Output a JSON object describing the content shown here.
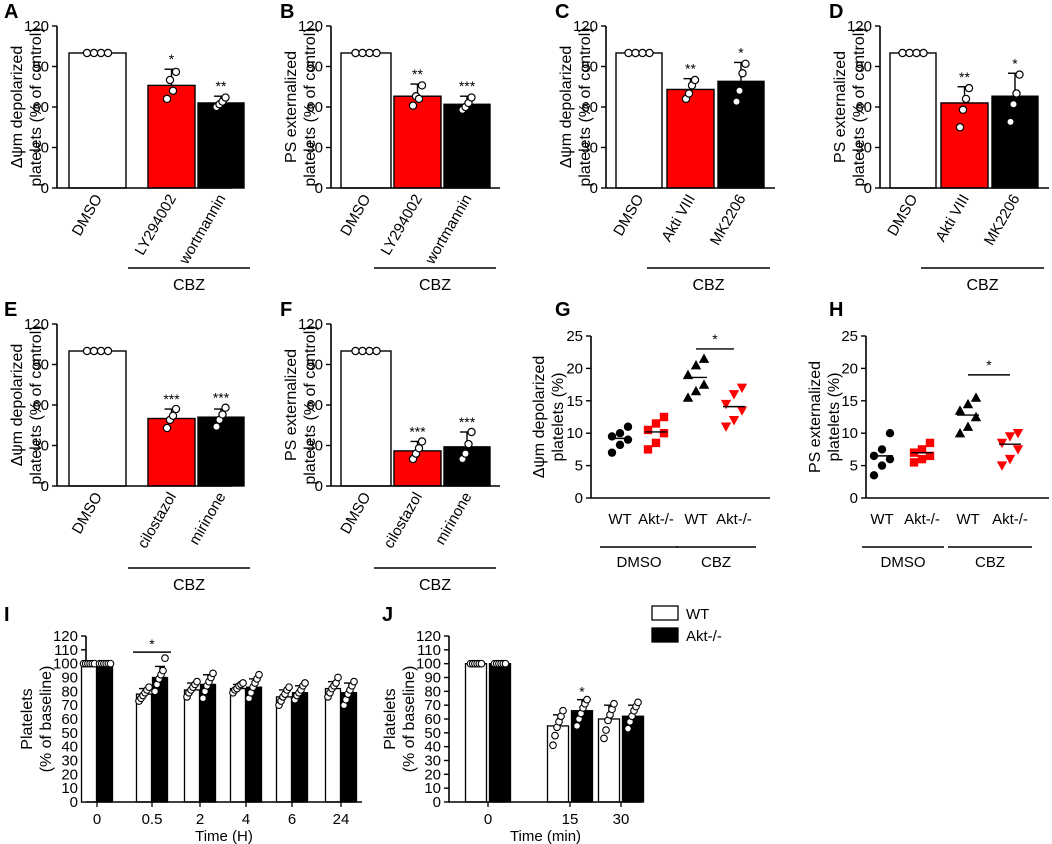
{
  "colors": {
    "white": "#ffffff",
    "red": "#ff0000",
    "black": "#000000",
    "axis": "#000000"
  },
  "legend": {
    "items": [
      {
        "label": "WT",
        "color": "#ffffff"
      },
      {
        "label": "Akt-/-",
        "color": "#000000"
      }
    ]
  },
  "chart_data": [
    {
      "panel": "A",
      "type": "bar",
      "ylabel": [
        "Δψm depolarized",
        "platelets (% of control)"
      ],
      "ylim": [
        0,
        120
      ],
      "yticks": [
        0,
        30,
        60,
        90,
        120
      ],
      "categories": [
        "DMSO",
        "LY294002",
        "wortmannin"
      ],
      "bar_colors": [
        "white",
        "red",
        "black"
      ],
      "values": [
        100,
        76,
        63
      ],
      "errors": [
        0,
        12,
        5
      ],
      "points": [
        [
          100,
          100,
          100,
          100
        ],
        [
          66,
          80,
          72,
          86
        ],
        [
          60,
          62,
          64,
          67
        ]
      ],
      "significance": [
        "",
        "*",
        "**"
      ],
      "group_label": "CBZ",
      "group_start": 1
    },
    {
      "panel": "B",
      "type": "bar",
      "ylabel": [
        "PS externalized",
        "platelets (% of control)"
      ],
      "ylim": [
        0,
        120
      ],
      "yticks": [
        0,
        30,
        60,
        90,
        120
      ],
      "categories": [
        "DMSO",
        "LY294002",
        "wortmannin"
      ],
      "bar_colors": [
        "white",
        "red",
        "black"
      ],
      "values": [
        100,
        68,
        62
      ],
      "errors": [
        0,
        9,
        6
      ],
      "points": [
        [
          100,
          100,
          100,
          100
        ],
        [
          61,
          68,
          66,
          76
        ],
        [
          58,
          60,
          63,
          67
        ]
      ],
      "significance": [
        "",
        "**",
        "***"
      ],
      "group_label": "CBZ",
      "group_start": 1
    },
    {
      "panel": "C",
      "type": "bar",
      "ylabel": [
        "Δψm depolarized",
        "platelets (% of control)"
      ],
      "ylim": [
        0,
        120
      ],
      "yticks": [
        0,
        30,
        60,
        90,
        120
      ],
      "categories": [
        "DMSO",
        "Akti VIII",
        "MK2206"
      ],
      "bar_colors": [
        "white",
        "red",
        "black"
      ],
      "values": [
        100,
        73,
        79
      ],
      "errors": [
        0,
        8,
        14
      ],
      "points": [
        [
          100,
          100,
          100,
          100
        ],
        [
          66,
          70,
          76,
          80
        ],
        [
          64,
          72,
          85,
          92
        ]
      ],
      "significance": [
        "",
        "**",
        "*"
      ],
      "group_label": "CBZ",
      "group_start": 1
    },
    {
      "panel": "D",
      "type": "bar",
      "ylabel": [
        "PS externalized",
        "platelets (% of control)"
      ],
      "ylim": [
        0,
        120
      ],
      "yticks": [
        0,
        30,
        60,
        90,
        120
      ],
      "categories": [
        "DMSO",
        "Akti VIII",
        "MK2206"
      ],
      "bar_colors": [
        "white",
        "red",
        "black"
      ],
      "values": [
        100,
        63,
        68
      ],
      "errors": [
        0,
        12,
        17
      ],
      "points": [
        [
          100,
          100,
          100,
          100
        ],
        [
          45,
          58,
          66,
          74
        ],
        [
          49,
          62,
          70,
          84
        ]
      ],
      "significance": [
        "",
        "**",
        "*"
      ],
      "group_label": "CBZ",
      "group_start": 1
    },
    {
      "panel": "E",
      "type": "bar",
      "ylabel": [
        "Δψm depolarized",
        "platelets (% of control)"
      ],
      "ylim": [
        0,
        120
      ],
      "yticks": [
        0,
        30,
        60,
        90,
        120
      ],
      "categories": [
        "DMSO",
        "cilostazol",
        "mirinone"
      ],
      "bar_colors": [
        "white",
        "red",
        "black"
      ],
      "values": [
        100,
        50,
        51
      ],
      "errors": [
        0,
        7,
        6
      ],
      "points": [
        [
          100,
          100,
          100,
          100
        ],
        [
          43,
          49,
          52,
          57
        ],
        [
          44,
          49,
          53,
          58
        ]
      ],
      "significance": [
        "",
        "***",
        "***"
      ],
      "group_label": "CBZ",
      "group_start": 1
    },
    {
      "panel": "F",
      "type": "bar",
      "ylabel": [
        "PS externalized",
        "platelets (% of control)"
      ],
      "ylim": [
        0,
        120
      ],
      "yticks": [
        0,
        30,
        60,
        90,
        120
      ],
      "categories": [
        "DMSO",
        "cilostazol",
        "mirinone"
      ],
      "bar_colors": [
        "white",
        "red",
        "black"
      ],
      "values": [
        100,
        26,
        29
      ],
      "errors": [
        0,
        7,
        11
      ],
      "points": [
        [
          100,
          100,
          100,
          100
        ],
        [
          20,
          24,
          28,
          33
        ],
        [
          20,
          24,
          31,
          40
        ]
      ],
      "significance": [
        "",
        "***",
        "***"
      ],
      "group_label": "CBZ",
      "group_start": 1
    },
    {
      "panel": "G",
      "type": "scatter",
      "ylabel": [
        "Δψm depolarized",
        "platelets (%)"
      ],
      "ylim": [
        0,
        25
      ],
      "yticks": [
        0,
        5,
        10,
        15,
        20,
        25
      ],
      "categories": [
        "WT",
        "Akt-/-",
        "WT",
        "Akt-/-"
      ],
      "groups": [
        {
          "label": "DMSO",
          "from": 0,
          "to": 1
        },
        {
          "label": "CBZ",
          "from": 2,
          "to": 3
        }
      ],
      "markers": [
        "circle",
        "square",
        "triangle-up",
        "triangle-down"
      ],
      "marker_colors": [
        "black",
        "red",
        "black",
        "red"
      ],
      "means": [
        9.2,
        10.2,
        18.6,
        14.1
      ],
      "points": [
        [
          7.0,
          8.2,
          9.0,
          9.5,
          10.0,
          11.0
        ],
        [
          7.5,
          8.5,
          10.0,
          10.5,
          11.5,
          12.5
        ],
        [
          15.5,
          16.5,
          17.5,
          19.0,
          20.5,
          21.5
        ],
        [
          11.0,
          12.0,
          13.5,
          14.5,
          16.0,
          17.0
        ]
      ],
      "significance": [
        {
          "from": 2,
          "to": 3,
          "label": "*",
          "y": 23
        }
      ]
    },
    {
      "panel": "H",
      "type": "scatter",
      "ylabel": [
        "PS externalized",
        "platelets (%)"
      ],
      "ylim": [
        0,
        25
      ],
      "yticks": [
        0,
        5,
        10,
        15,
        20,
        25
      ],
      "categories": [
        "WT",
        "Akt-/-",
        "WT",
        "Akt-/-"
      ],
      "groups": [
        {
          "label": "DMSO",
          "from": 0,
          "to": 1
        },
        {
          "label": "CBZ",
          "from": 2,
          "to": 3
        }
      ],
      "markers": [
        "circle",
        "square",
        "triangle-up",
        "triangle-down"
      ],
      "marker_colors": [
        "black",
        "red",
        "black",
        "red"
      ],
      "means": [
        6.5,
        7.0,
        12.8,
        8.3
      ],
      "points": [
        [
          3.5,
          5.0,
          6.0,
          6.5,
          7.5,
          10.0
        ],
        [
          5.5,
          6.0,
          6.5,
          7.0,
          7.5,
          8.5
        ],
        [
          10.0,
          11.0,
          12.5,
          13.5,
          14.5,
          15.5
        ],
        [
          5.0,
          6.0,
          7.5,
          8.5,
          9.5,
          10.0
        ]
      ],
      "significance": [
        {
          "from": 2,
          "to": 3,
          "label": "*",
          "y": 19
        }
      ]
    },
    {
      "panel": "I",
      "type": "bar",
      "ylabel": [
        "Platelets",
        "(% of baseline)"
      ],
      "xlabel": "Time (H)",
      "ylim": [
        0,
        120
      ],
      "yticks": [
        0,
        10,
        20,
        30,
        40,
        50,
        60,
        70,
        80,
        90,
        100,
        110,
        120
      ],
      "categories": [
        "0",
        "0.5",
        "2",
        "4",
        "6",
        "24"
      ],
      "series": [
        {
          "name": "WT",
          "color": "white",
          "values": [
            100,
            78,
            81,
            82,
            76,
            82
          ],
          "errors": [
            0,
            4,
            5,
            3,
            5,
            5
          ],
          "points": [
            [
              100,
              100,
              100,
              100,
              100,
              100
            ],
            [
              73,
              75,
              77,
              79,
              81,
              83
            ],
            [
              76,
              79,
              81,
              83,
              85,
              87
            ],
            [
              79,
              81,
              82,
              84,
              85,
              86
            ],
            [
              70,
              73,
              76,
              78,
              81,
              83
            ],
            [
              76,
              79,
              82,
              84,
              86,
              90
            ]
          ]
        },
        {
          "name": "Akt-/-",
          "color": "black",
          "values": [
            100,
            90,
            85,
            83,
            79,
            79
          ],
          "errors": [
            0,
            8,
            7,
            6,
            5,
            7
          ],
          "points": [
            [
              100,
              100,
              100,
              100,
              100,
              100
            ],
            [
              80,
              85,
              89,
              92,
              95,
              104
            ],
            [
              75,
              80,
              84,
              87,
              90,
              93
            ],
            [
              75,
              79,
              83,
              86,
              89,
              92
            ],
            [
              74,
              77,
              79,
              81,
              84,
              86
            ],
            [
              70,
              74,
              78,
              81,
              84,
              87
            ]
          ]
        }
      ],
      "significance": [
        {
          "category": 1,
          "label": "*"
        }
      ]
    },
    {
      "panel": "J",
      "type": "bar",
      "ylabel": [
        "Platelets",
        "(% of baseline)"
      ],
      "xlabel": "Time (min)",
      "ylim": [
        0,
        120
      ],
      "yticks": [
        0,
        10,
        20,
        30,
        40,
        50,
        60,
        70,
        80,
        90,
        100,
        110,
        120
      ],
      "categories": [
        "0",
        "15",
        "30"
      ],
      "series": [
        {
          "name": "WT",
          "color": "white",
          "values": [
            100,
            55,
            60
          ],
          "errors": [
            0,
            8,
            10
          ],
          "points": [
            [
              100,
              100,
              100,
              100,
              100,
              100
            ],
            [
              41,
              48,
              54,
              58,
              62,
              66
            ],
            [
              46,
              52,
              59,
              63,
              67,
              71
            ]
          ]
        },
        {
          "name": "Akt-/-",
          "color": "black",
          "values": [
            100,
            66,
            62
          ],
          "errors": [
            0,
            8,
            8
          ],
          "points": [
            [
              100,
              100,
              100,
              100,
              100,
              100
            ],
            [
              55,
              60,
              64,
              68,
              71,
              74
            ],
            [
              53,
              58,
              62,
              66,
              69,
              72
            ]
          ]
        }
      ],
      "significance": [
        {
          "category": 1,
          "label": "*"
        }
      ]
    }
  ]
}
